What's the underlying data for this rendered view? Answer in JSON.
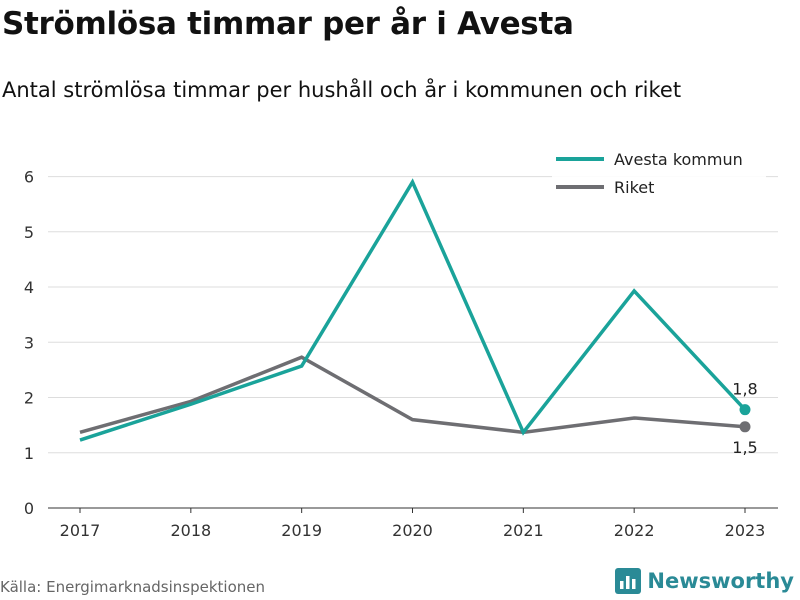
{
  "header": {
    "title": "Strömlösa timmar per år i Avesta",
    "subtitle": "Antal strömlösa timmar per hushåll och år i kommunen och riket"
  },
  "footer": {
    "source": "Källa: Energimarknadsinspektionen",
    "brand": "Newsworthy",
    "brand_icon": "bar-chart-logo-icon"
  },
  "colors": {
    "avesta": "#1aa39a",
    "riket": "#6e6e72",
    "grid": "#dddddd",
    "brand": "#2a8a96"
  },
  "chart_data": {
    "type": "line",
    "categories": [
      "2017",
      "2018",
      "2019",
      "2020",
      "2021",
      "2022",
      "2023"
    ],
    "series": [
      {
        "name": "Avesta kommun",
        "values": [
          1.23,
          1.88,
          2.57,
          5.9,
          1.37,
          3.93,
          1.78
        ]
      },
      {
        "name": "Riket",
        "values": [
          1.37,
          1.93,
          2.73,
          1.6,
          1.37,
          1.63,
          1.47
        ]
      }
    ],
    "yticks": [
      "0",
      "1",
      "2",
      "3",
      "4",
      "5",
      "6"
    ],
    "ylim": [
      0,
      6.3
    ],
    "end_labels": [
      "1,8",
      "1,5"
    ],
    "grid": true,
    "legend": "top-right"
  }
}
